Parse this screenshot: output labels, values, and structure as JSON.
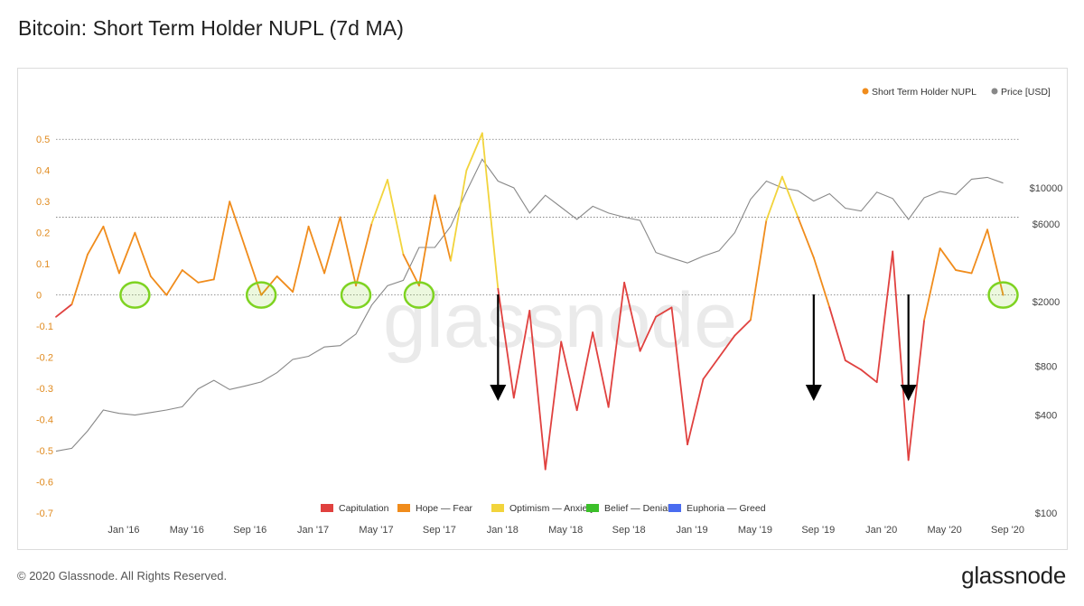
{
  "title": "Bitcoin: Short Term Holder NUPL (7d MA)",
  "footer": {
    "copyright": "© 2020 Glassnode. All Rights Reserved.",
    "brand": "glassnode"
  },
  "watermark": "glassnode",
  "colors": {
    "capitulation": "#e0413f",
    "hope_fear": "#f08c1c",
    "optimism_anxiety": "#f2d43c",
    "belief_denial": "#3cc02a",
    "euphoria_greed": "#4a6cf0",
    "price": "#888888",
    "left_axis_text": "#e08a1e",
    "highlight": "#7ed321",
    "arrow": "#000000"
  },
  "chart_data": {
    "type": "line",
    "x_tick_labels": [
      "Jan '16",
      "May '16",
      "Sep '16",
      "Jan '17",
      "May '17",
      "Sep '17",
      "Jan '18",
      "May '18",
      "Sep '18",
      "Jan '19",
      "May '19",
      "Sep '19",
      "Jan '20",
      "May '20",
      "Sep '20"
    ],
    "x_range": [
      "2015-09",
      "2020-10"
    ],
    "left_axis": {
      "ticks": [
        "0.5",
        "0.4",
        "0.3",
        "0.2",
        "0.1",
        "0",
        "-0.1",
        "-0.2",
        "-0.3",
        "-0.4",
        "-0.5",
        "-0.6",
        "-0.7"
      ],
      "ylim": [
        -0.7,
        0.55
      ]
    },
    "right_axis": {
      "scale": "log",
      "ticks": [
        "$10000",
        "$6000",
        "$2000",
        "$800",
        "$400",
        "$100"
      ],
      "tick_values": [
        10000,
        6000,
        2000,
        800,
        400,
        100
      ]
    },
    "reference_lines": [
      0.5,
      0.25,
      0
    ],
    "legend_top": [
      "Short Term Holder NUPL",
      "Price [USD]"
    ],
    "legend_bottom": [
      "Capitulation",
      "Hope — Fear",
      "Optimism — Anxiety",
      "Belief — Denial",
      "Euphoria — Greed"
    ],
    "series": [
      {
        "name": "Short Term Holder NUPL",
        "axis": "left",
        "points": [
          [
            "2015-09",
            -0.07
          ],
          [
            "2015-10",
            -0.03
          ],
          [
            "2015-11",
            0.13
          ],
          [
            "2015-12",
            0.22
          ],
          [
            "2016-01",
            0.07
          ],
          [
            "2016-02",
            0.2
          ],
          [
            "2016-03",
            0.06
          ],
          [
            "2016-04",
            0.0
          ],
          [
            "2016-05",
            0.08
          ],
          [
            "2016-06",
            0.04
          ],
          [
            "2016-07",
            0.05
          ],
          [
            "2016-08",
            0.3
          ],
          [
            "2016-09",
            0.15
          ],
          [
            "2016-10",
            0.0
          ],
          [
            "2016-11",
            0.06
          ],
          [
            "2016-12",
            0.01
          ],
          [
            "2017-01",
            0.22
          ],
          [
            "2017-02",
            0.07
          ],
          [
            "2017-03",
            0.25
          ],
          [
            "2017-04",
            0.03
          ],
          [
            "2017-05",
            0.23
          ],
          [
            "2017-06",
            0.37
          ],
          [
            "2017-07",
            0.13
          ],
          [
            "2017-08",
            0.03
          ],
          [
            "2017-09",
            0.32
          ],
          [
            "2017-10",
            0.11
          ],
          [
            "2017-11",
            0.4
          ],
          [
            "2017-12",
            0.52
          ],
          [
            "2018-01",
            0.02
          ],
          [
            "2018-02",
            -0.33
          ],
          [
            "2018-03",
            -0.05
          ],
          [
            "2018-04",
            -0.56
          ],
          [
            "2018-05",
            -0.15
          ],
          [
            "2018-06",
            -0.37
          ],
          [
            "2018-07",
            -0.12
          ],
          [
            "2018-08",
            -0.36
          ],
          [
            "2018-09",
            0.04
          ],
          [
            "2018-10",
            -0.18
          ],
          [
            "2018-11",
            -0.07
          ],
          [
            "2018-12",
            -0.04
          ],
          [
            "2019-01",
            -0.48
          ],
          [
            "2019-02",
            -0.27
          ],
          [
            "2019-03",
            -0.2
          ],
          [
            "2019-04",
            -0.13
          ],
          [
            "2019-05",
            -0.08
          ],
          [
            "2019-06",
            0.24
          ],
          [
            "2019-07",
            0.38
          ],
          [
            "2019-08",
            0.25
          ],
          [
            "2019-09",
            0.12
          ],
          [
            "2019-10",
            -0.04
          ],
          [
            "2019-11",
            -0.21
          ],
          [
            "2019-12",
            -0.24
          ],
          [
            "2020-01",
            -0.28
          ],
          [
            "2020-02",
            0.14
          ],
          [
            "2020-03",
            -0.53
          ],
          [
            "2020-04",
            -0.08
          ],
          [
            "2020-05",
            0.15
          ],
          [
            "2020-06",
            0.08
          ],
          [
            "2020-07",
            0.07
          ],
          [
            "2020-08",
            0.21
          ],
          [
            "2020-09",
            0.0
          ]
        ]
      },
      {
        "name": "Price [USD]",
        "axis": "right",
        "points": [
          [
            "2015-09",
            240
          ],
          [
            "2015-10",
            250
          ],
          [
            "2015-11",
            320
          ],
          [
            "2015-12",
            430
          ],
          [
            "2016-01",
            410
          ],
          [
            "2016-02",
            400
          ],
          [
            "2016-03",
            415
          ],
          [
            "2016-04",
            430
          ],
          [
            "2016-05",
            450
          ],
          [
            "2016-06",
            580
          ],
          [
            "2016-07",
            655
          ],
          [
            "2016-08",
            575
          ],
          [
            "2016-09",
            605
          ],
          [
            "2016-10",
            640
          ],
          [
            "2016-11",
            730
          ],
          [
            "2016-12",
            880
          ],
          [
            "2017-01",
            920
          ],
          [
            "2017-02",
            1050
          ],
          [
            "2017-03",
            1070
          ],
          [
            "2017-04",
            1260
          ],
          [
            "2017-05",
            1900
          ],
          [
            "2017-06",
            2500
          ],
          [
            "2017-07",
            2700
          ],
          [
            "2017-08",
            4300
          ],
          [
            "2017-09",
            4300
          ],
          [
            "2017-10",
            5800
          ],
          [
            "2017-11",
            9500
          ],
          [
            "2017-12",
            15000
          ],
          [
            "2018-01",
            11000
          ],
          [
            "2018-02",
            10000
          ],
          [
            "2018-03",
            7000
          ],
          [
            "2018-04",
            9000
          ],
          [
            "2018-05",
            7600
          ],
          [
            "2018-06",
            6400
          ],
          [
            "2018-07",
            7700
          ],
          [
            "2018-08",
            7000
          ],
          [
            "2018-09",
            6600
          ],
          [
            "2018-10",
            6300
          ],
          [
            "2018-11",
            4000
          ],
          [
            "2018-12",
            3700
          ],
          [
            "2019-01",
            3450
          ],
          [
            "2019-02",
            3800
          ],
          [
            "2019-03",
            4100
          ],
          [
            "2019-04",
            5300
          ],
          [
            "2019-05",
            8500
          ],
          [
            "2019-06",
            11000
          ],
          [
            "2019-07",
            10000
          ],
          [
            "2019-08",
            9600
          ],
          [
            "2019-09",
            8300
          ],
          [
            "2019-10",
            9200
          ],
          [
            "2019-11",
            7500
          ],
          [
            "2019-12",
            7200
          ],
          [
            "2020-01",
            9400
          ],
          [
            "2020-02",
            8600
          ],
          [
            "2020-03",
            6400
          ],
          [
            "2020-04",
            8700
          ],
          [
            "2020-05",
            9500
          ],
          [
            "2020-06",
            9100
          ],
          [
            "2020-07",
            11300
          ],
          [
            "2020-08",
            11600
          ],
          [
            "2020-09",
            10700
          ]
        ]
      }
    ],
    "highlighted_dates": [
      "2016-02",
      "2016-10",
      "2017-04",
      "2017-08",
      "2020-09"
    ],
    "arrow_dates": [
      "2018-01",
      "2019-09",
      "2020-03"
    ]
  }
}
